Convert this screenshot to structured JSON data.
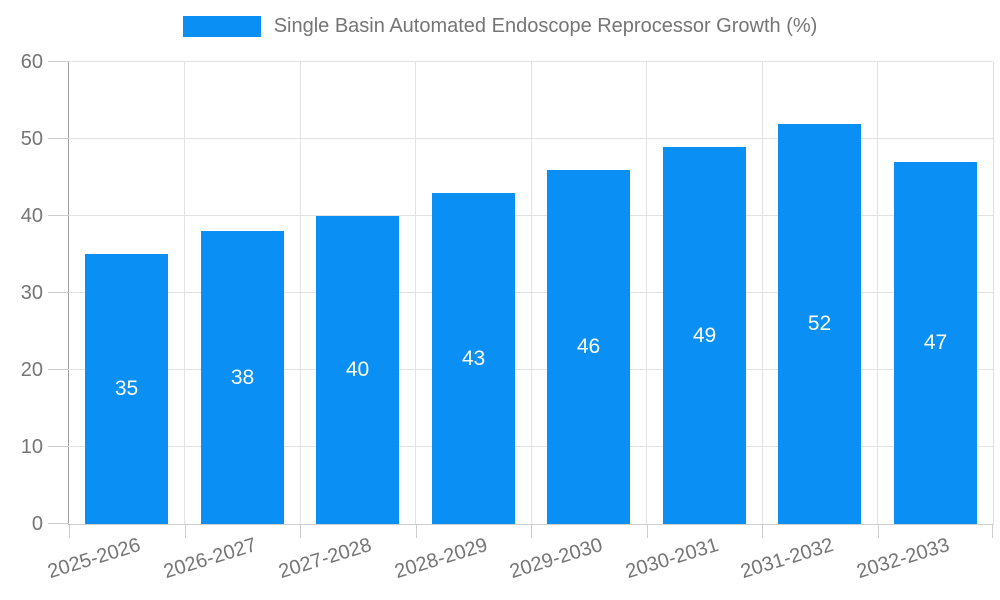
{
  "legend": {
    "label": "Single Basin Automated Endoscope Reprocessor Growth (%)"
  },
  "chart_data": {
    "type": "bar",
    "title": "Single Basin Automated Endoscope Reprocessor Growth (%)",
    "categories": [
      "2025-2026",
      "2026-2027",
      "2027-2028",
      "2028-2029",
      "2029-2030",
      "2030-2031",
      "2031-2032",
      "2032-2033"
    ],
    "values": [
      35,
      38,
      40,
      43,
      46,
      49,
      52,
      47
    ],
    "xlabel": "",
    "ylabel": "",
    "ylim": [
      0,
      60
    ],
    "yticks": [
      0,
      10,
      20,
      30,
      40,
      50,
      60
    ],
    "grid": true,
    "legend_position": "top-center",
    "bar_color": "#0A90F5",
    "value_label_color": "#FFFFFF",
    "axis_text_color": "#757575",
    "gridline_color": "#E2E2E2",
    "tick_color": "#CCCCCC",
    "axis_line_color": "#9E9E9E",
    "x_label_rotation_deg": -17
  }
}
